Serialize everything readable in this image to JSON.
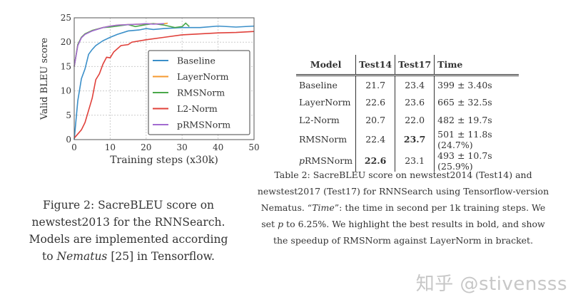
{
  "chart_data": {
    "type": "line",
    "xlabel": "Training steps (x30k)",
    "ylabel": "Valid BLEU score",
    "xlim": [
      0,
      50
    ],
    "ylim": [
      0,
      25
    ],
    "xticks": [
      0,
      10,
      20,
      30,
      40,
      50
    ],
    "yticks": [
      0,
      5,
      10,
      15,
      20,
      25
    ],
    "grid": true,
    "legend_position": "right",
    "series": [
      {
        "name": "Baseline",
        "color": "#3a8fc9",
        "x": [
          0,
          1,
          2,
          3,
          4,
          5,
          6,
          8,
          10,
          12,
          15,
          18,
          20,
          22,
          25,
          30,
          35,
          40,
          45,
          50
        ],
        "y": [
          0,
          8,
          12.5,
          14.5,
          17.5,
          18.5,
          19.3,
          20.3,
          21,
          21.6,
          22.3,
          22.5,
          22.8,
          22.6,
          22.8,
          23,
          23,
          23.3,
          23.1,
          23.3
        ]
      },
      {
        "name": "LayerNorm",
        "color": "#f59a2f",
        "x": [
          0,
          1,
          2,
          3,
          5,
          8,
          10,
          12,
          15,
          18,
          20,
          22,
          24,
          26
        ],
        "y": [
          15,
          19.5,
          21,
          21.7,
          22.4,
          23,
          23.3,
          23.5,
          23.6,
          23.7,
          23.7,
          23.8,
          23.7,
          23.9
        ]
      },
      {
        "name": "RMSNorm",
        "color": "#4aa84a",
        "x": [
          0,
          1,
          2,
          3,
          5,
          8,
          10,
          12,
          15,
          17,
          20,
          22,
          25,
          28,
          30,
          31,
          32
        ],
        "y": [
          15,
          19.5,
          21,
          21.7,
          22.4,
          23,
          23.1,
          23.3,
          23.6,
          23.2,
          23.6,
          23.8,
          23.5,
          23,
          23.2,
          23.9,
          23.2
        ]
      },
      {
        "name": "L2-Norm",
        "color": "#e0403a",
        "x": [
          0,
          2,
          3,
          4,
          5,
          6,
          7,
          8,
          9,
          10,
          11,
          13,
          15,
          16,
          20,
          25,
          30,
          35,
          40,
          45,
          50
        ],
        "y": [
          0.3,
          2,
          3.5,
          6,
          8.5,
          12.3,
          13.5,
          15.5,
          16.9,
          16.8,
          18,
          19.3,
          19.5,
          20,
          20.5,
          21,
          21.5,
          21.7,
          21.9,
          22,
          22.2
        ]
      },
      {
        "name": "pRMSNorm",
        "color": "#a26bd0",
        "x": [
          0,
          1,
          2,
          3,
          5,
          8,
          10,
          12,
          15,
          18,
          20,
          22,
          25
        ],
        "y": [
          15,
          19.3,
          20.9,
          21.6,
          22.3,
          23,
          23.3,
          23.5,
          23.6,
          23.7,
          23.8,
          23.7,
          23.8
        ]
      }
    ]
  },
  "figure_caption": {
    "prefix": "Figure 2:  SacreBLEU score on newstest2013 for the RNNSearch. Models are implemented according to ",
    "italic": "Nematus",
    "suffix": " [25] in Tensorflow."
  },
  "table": {
    "headers": [
      "Model",
      "Test14",
      "Test17",
      "Time"
    ],
    "rows": [
      {
        "model": "Baseline",
        "test14": "21.7",
        "test17": "23.4",
        "time": "399 ± 3.40s"
      },
      {
        "model": "LayerNorm",
        "test14": "22.6",
        "test17": "23.6",
        "time": "665 ± 32.5s"
      },
      {
        "model": "L2-Norm",
        "test14": "20.7",
        "test17": "22.0",
        "time": "482 ± 19.7s"
      },
      {
        "model": "RMSNorm",
        "test14": "22.4",
        "test17": "23.7",
        "time": "501 ± 11.8s (24.7%)"
      },
      {
        "model_prefix": "p",
        "model": "RMSNorm",
        "test14": "22.6",
        "test17": "23.1",
        "time": "493 ± 10.7s (25.9%)"
      }
    ]
  },
  "table_caption": {
    "p1": "Table 2:  SacreBLEU score on newstest2014 (Test14) and newstest2017 (Test17) for RNNSearch using Tensorflow-version Nematus. “",
    "italic1": "Time",
    "p2": "”: the time in second per 1k training steps. We set ",
    "italic2": "p",
    "p3": " to 6.25%. We highlight the best results in bold, and show the speedup of RMSNorm against LayerNorm in bracket."
  },
  "watermark": "知乎 @stivensss"
}
